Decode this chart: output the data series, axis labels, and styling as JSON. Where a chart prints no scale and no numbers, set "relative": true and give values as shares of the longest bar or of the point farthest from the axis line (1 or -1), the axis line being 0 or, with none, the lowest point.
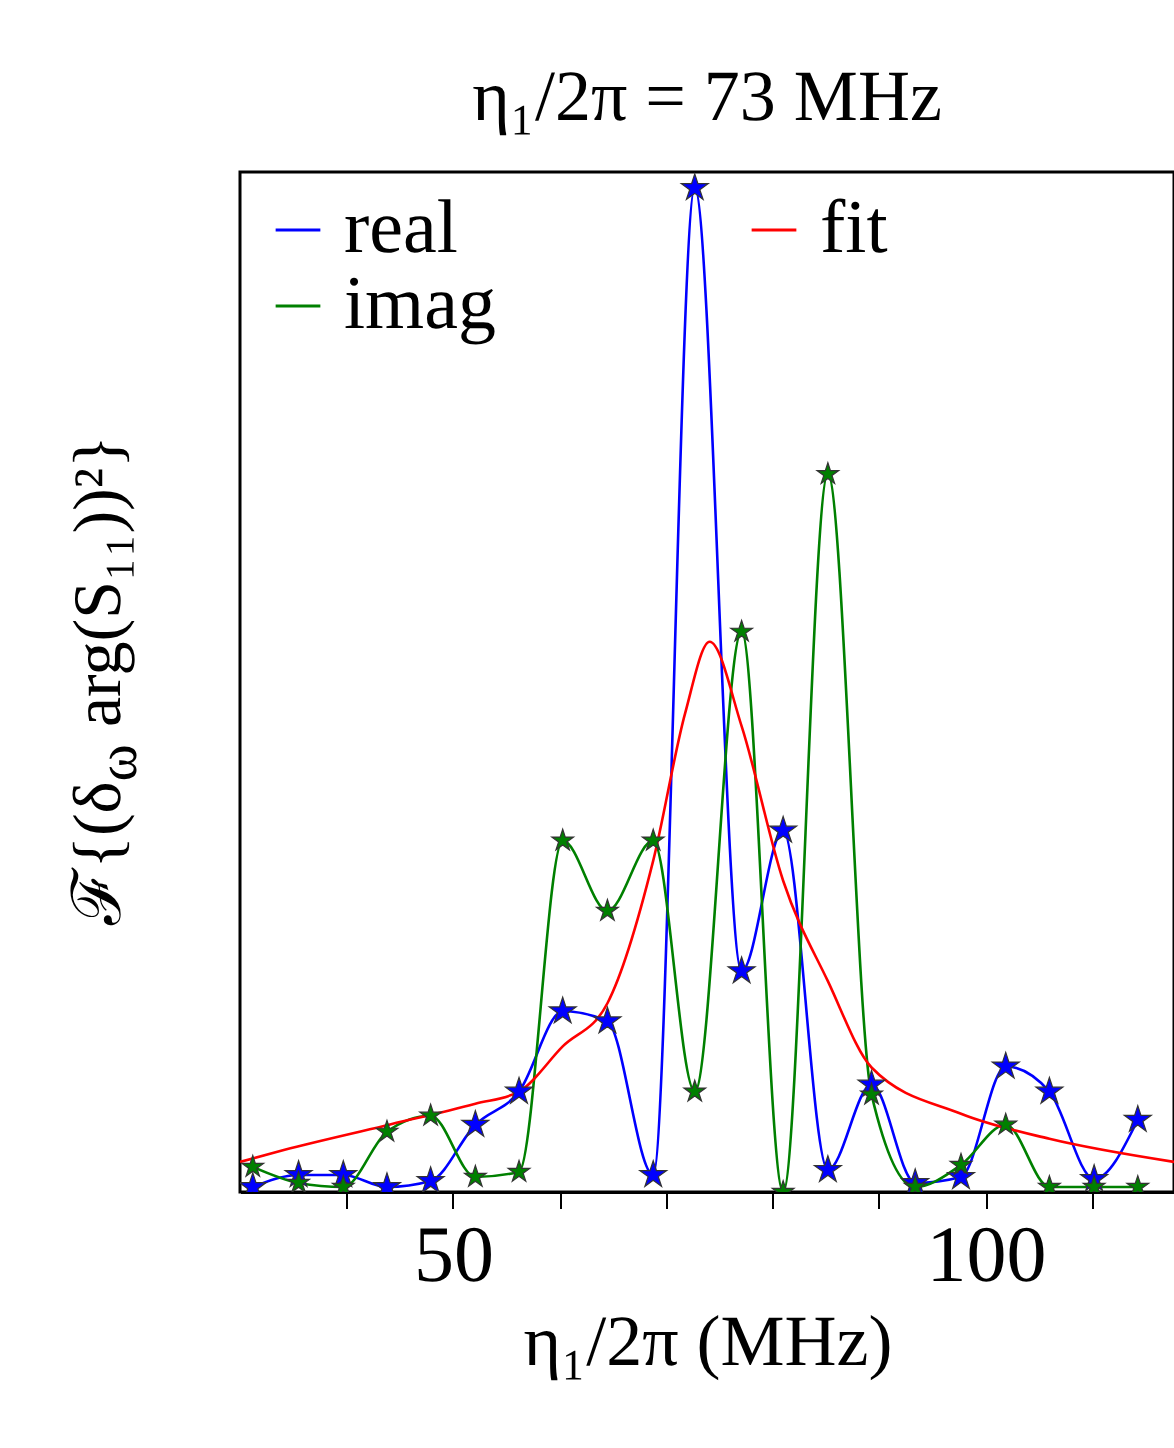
{
  "chart_data": {
    "type": "line",
    "title": "η₁/2π = 73 MHz",
    "xlabel": "η₁/2π (MHz)",
    "ylabel": "ℱ{(δ$_{ω}$ arg(S₁₁))²}",
    "relative": true,
    "xlim": [
      30,
      117.7
    ],
    "xticks": [
      {
        "value": 40,
        "label": null
      },
      50,
      {
        "value": 60,
        "label": null
      },
      {
        "value": 70,
        "label": null
      },
      {
        "value": 80,
        "label": null
      },
      {
        "value": 90,
        "label": null
      },
      100,
      {
        "value": 110,
        "label": null
      }
    ],
    "legend": "top left",
    "grid": false,
    "series": [
      {
        "name": "real",
        "color": "#0000ff",
        "marker": "star",
        "x": [
          31.2,
          35.5,
          39.7,
          43.8,
          47.9,
          52.1,
          56.2,
          60.3,
          64.5,
          68.8,
          72.7,
          77.1,
          81.0,
          85.2,
          89.3,
          93.4,
          97.7,
          101.9,
          106.0,
          110.2,
          114.3
        ],
        "values": [
          0.005,
          0.017,
          0.017,
          0.005,
          0.011,
          0.067,
          0.1,
          0.18,
          0.17,
          0.017,
          1.0,
          0.22,
          0.36,
          0.022,
          0.107,
          0.009,
          0.015,
          0.125,
          0.1,
          0.013,
          0.072
        ]
      },
      {
        "name": "imag",
        "color": "#008000",
        "marker": "star",
        "x": [
          31.2,
          35.5,
          39.7,
          43.8,
          47.9,
          52.1,
          56.2,
          60.3,
          64.5,
          68.8,
          72.7,
          77.1,
          81.0,
          85.2,
          89.3,
          93.4,
          97.7,
          101.9,
          106.0,
          110.2,
          114.3
        ],
        "values": [
          0.025,
          0.009,
          0.005,
          0.06,
          0.076,
          0.015,
          0.02,
          0.35,
          0.28,
          0.35,
          0.1,
          0.558,
          0,
          0.715,
          0.097,
          0.005,
          0.027,
          0.067,
          0.005,
          0.005,
          0.005
        ]
      },
      {
        "name": "fit",
        "color": "#ff0000",
        "marker": "none",
        "x": [
          30,
          34.2,
          43.6,
          52.1,
          56.2,
          60.3,
          64.5,
          68.8,
          71.8,
          74.1,
          77.1,
          81.0,
          85.2,
          89.3,
          97.7,
          106.0,
          117.7
        ],
        "values": [
          0.03,
          0.042,
          0.066,
          0.088,
          0.1,
          0.145,
          0.188,
          0.33,
          0.477,
          0.548,
          0.464,
          0.31,
          0.21,
          0.124,
          0.078,
          0.053,
          0.03
        ]
      }
    ]
  }
}
